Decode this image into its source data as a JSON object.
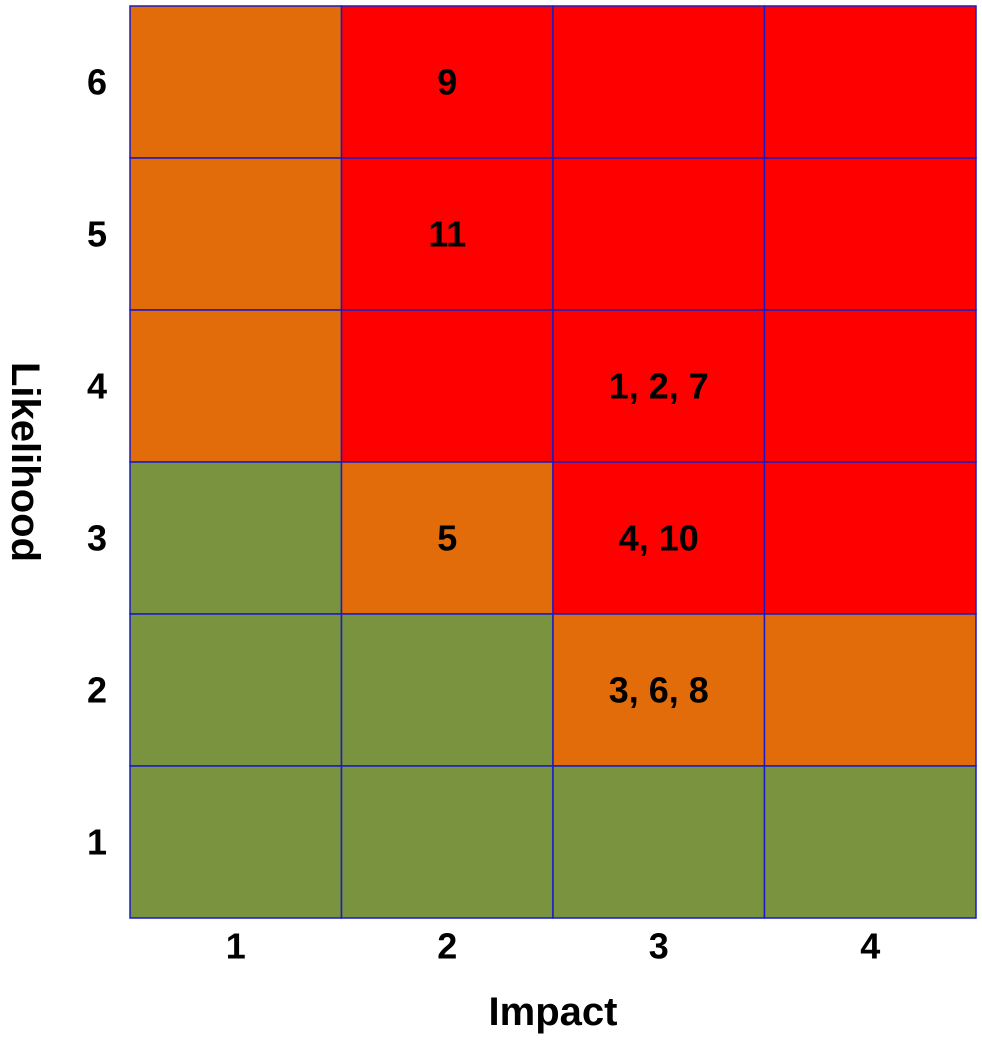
{
  "chart_data": {
    "type": "heatmap",
    "xlabel": "Impact",
    "ylabel": "Likelihood",
    "x_categories": [
      "1",
      "2",
      "3",
      "4"
    ],
    "y_categories": [
      "1",
      "2",
      "3",
      "4",
      "5",
      "6"
    ],
    "colors": {
      "green": "#79933E",
      "orange": "#E36C0A",
      "red": "#FF0000",
      "grid": "#1A1AC8"
    },
    "cells": [
      {
        "likelihood": 6,
        "impact": 1,
        "color": "orange",
        "label": ""
      },
      {
        "likelihood": 6,
        "impact": 2,
        "color": "red",
        "label": "9"
      },
      {
        "likelihood": 6,
        "impact": 3,
        "color": "red",
        "label": ""
      },
      {
        "likelihood": 6,
        "impact": 4,
        "color": "red",
        "label": ""
      },
      {
        "likelihood": 5,
        "impact": 1,
        "color": "orange",
        "label": ""
      },
      {
        "likelihood": 5,
        "impact": 2,
        "color": "red",
        "label": "11"
      },
      {
        "likelihood": 5,
        "impact": 3,
        "color": "red",
        "label": ""
      },
      {
        "likelihood": 5,
        "impact": 4,
        "color": "red",
        "label": ""
      },
      {
        "likelihood": 4,
        "impact": 1,
        "color": "orange",
        "label": ""
      },
      {
        "likelihood": 4,
        "impact": 2,
        "color": "red",
        "label": ""
      },
      {
        "likelihood": 4,
        "impact": 3,
        "color": "red",
        "label": "1, 2, 7"
      },
      {
        "likelihood": 4,
        "impact": 4,
        "color": "red",
        "label": ""
      },
      {
        "likelihood": 3,
        "impact": 1,
        "color": "green",
        "label": ""
      },
      {
        "likelihood": 3,
        "impact": 2,
        "color": "orange",
        "label": "5"
      },
      {
        "likelihood": 3,
        "impact": 3,
        "color": "red",
        "label": "4, 10"
      },
      {
        "likelihood": 3,
        "impact": 4,
        "color": "red",
        "label": ""
      },
      {
        "likelihood": 2,
        "impact": 1,
        "color": "green",
        "label": ""
      },
      {
        "likelihood": 2,
        "impact": 2,
        "color": "green",
        "label": ""
      },
      {
        "likelihood": 2,
        "impact": 3,
        "color": "orange",
        "label": "3, 6, 8"
      },
      {
        "likelihood": 2,
        "impact": 4,
        "color": "orange",
        "label": ""
      },
      {
        "likelihood": 1,
        "impact": 1,
        "color": "green",
        "label": ""
      },
      {
        "likelihood": 1,
        "impact": 2,
        "color": "green",
        "label": ""
      },
      {
        "likelihood": 1,
        "impact": 3,
        "color": "green",
        "label": ""
      },
      {
        "likelihood": 1,
        "impact": 4,
        "color": "green",
        "label": ""
      }
    ]
  }
}
